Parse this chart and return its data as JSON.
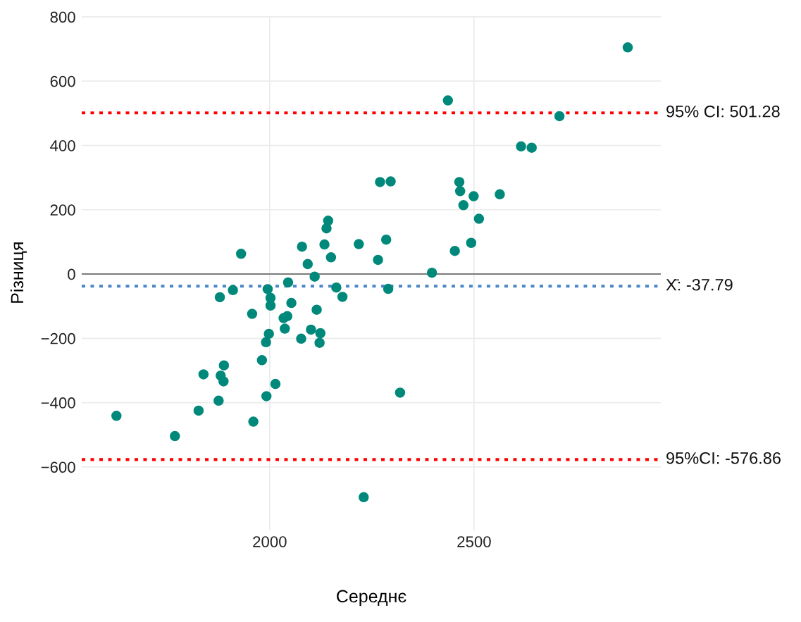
{
  "chart_data": {
    "type": "scatter",
    "xlabel": "Середнє",
    "ylabel": "Різниця",
    "x": [
      2876,
      2436,
      2709,
      2615,
      2641,
      2270,
      2296,
      2464,
      2466,
      2499,
      2563,
      2474,
      2512,
      2218,
      2285,
      2265,
      2493,
      2453,
      2397,
      1930,
      2079,
      2093,
      2110,
      2134,
      2139,
      2143,
      2150,
      2045,
      1910,
      1995,
      1878,
      2002,
      2002,
      2053,
      2163,
      2178,
      2290,
      1957,
      2115,
      2034,
      2043,
      2037,
      2101,
      2124,
      1998,
      2077,
      2122,
      1991,
      1981,
      1888,
      1838,
      1880,
      1887,
      2014,
      1992,
      2319,
      1875,
      1826,
      1625,
      1960,
      1768,
      2230
    ],
    "values": [
      705,
      540,
      491,
      397,
      393,
      286,
      288,
      286,
      258,
      242,
      248,
      214,
      172,
      93,
      107,
      44,
      97,
      72,
      4,
      63,
      85,
      31,
      -8,
      92,
      142,
      166,
      52,
      -26,
      -50,
      -47,
      -72,
      -74,
      -98,
      -90,
      -42,
      -71,
      -46,
      -124,
      -111,
      -137,
      -131,
      -170,
      -173,
      -184,
      -186,
      -201,
      -214,
      -212,
      -268,
      -284,
      -312,
      -316,
      -334,
      -342,
      -380,
      -369,
      -394,
      -425,
      -441,
      -459,
      -504,
      -694
    ],
    "color": "#00897b",
    "marker": "circle",
    "xlim": [
      1540,
      2957
    ],
    "ylim": [
      -796,
      804
    ],
    "xticks": [
      2000,
      2500
    ],
    "yticks": [
      {
        "value": -600,
        "label": "−600"
      },
      {
        "value": -400,
        "label": "−400"
      },
      {
        "value": -200,
        "label": "−200"
      },
      0,
      200,
      400,
      600,
      800
    ],
    "grid": true,
    "ref_lines": [
      {
        "axis": "y",
        "value": 0,
        "label": null,
        "color": "#555555",
        "line_style": "solid"
      },
      {
        "axis": "y",
        "value": 501.28,
        "label": "95% CI: 501.28",
        "color": "#ff0000",
        "line_style": "dotted"
      },
      {
        "axis": "y",
        "value": -37.79,
        "label": "X̄: -37.79",
        "color": "#4a86c8",
        "line_style": "dotted"
      },
      {
        "axis": "y",
        "value": -576.86,
        "label": "95%CI: -576.86",
        "color": "#ff0000",
        "line_style": "dotted"
      }
    ]
  }
}
